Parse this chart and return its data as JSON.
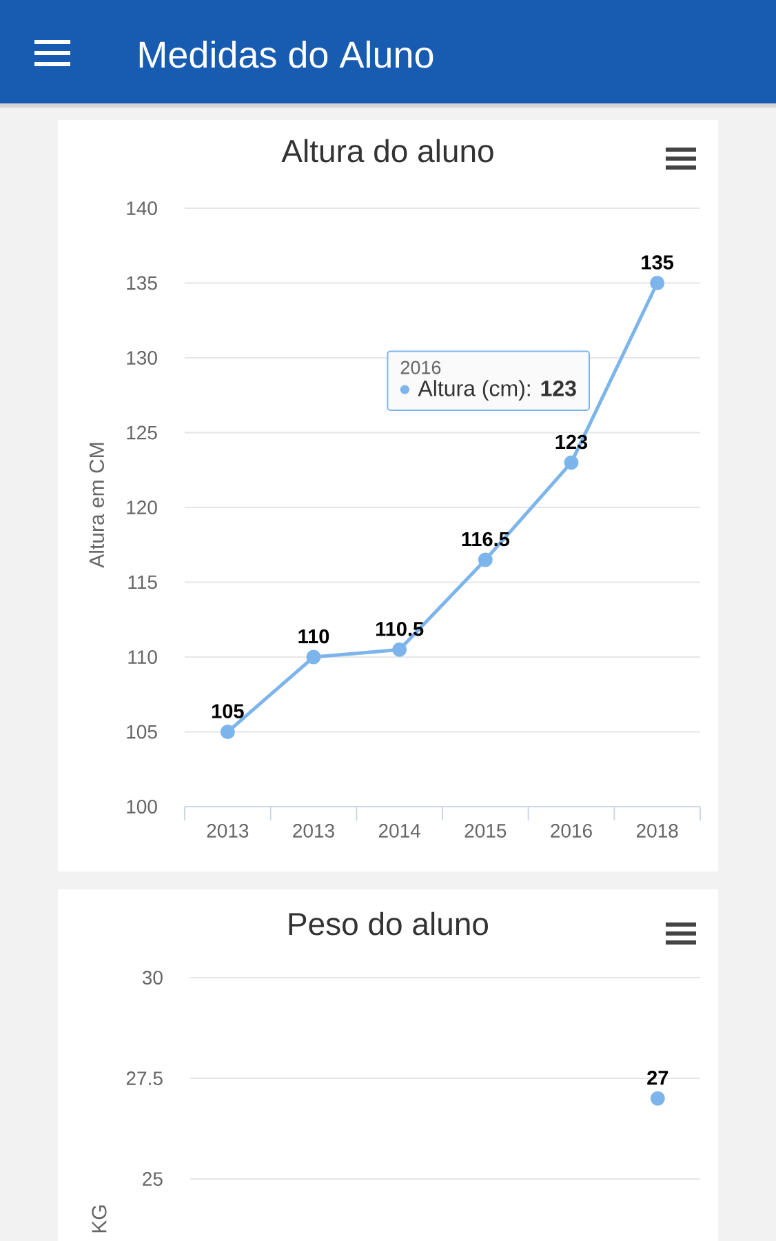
{
  "chart_data": [
    {
      "type": "line",
      "title": "Altura do aluno",
      "ylabel": "Altura em CM",
      "categories": [
        "2013",
        "2013",
        "2014",
        "2015",
        "2016",
        "2018"
      ],
      "series": [
        {
          "color": "#7cb5ec",
          "values": [
            105,
            110,
            110.5,
            116.5,
            123,
            135
          ]
        }
      ],
      "ylim": [
        100,
        140
      ],
      "yticks": [
        100,
        105,
        110,
        115,
        120,
        125,
        130,
        135,
        140
      ],
      "grid": "y",
      "marker": "circle",
      "data_labels": true,
      "annotations": [
        "Medidas do Aluno",
        "2016",
        "Altura (cm): **123**"
      ]
    },
    {
      "type": "line",
      "title": "Peso do aluno",
      "ylabel": "KG",
      "categories": [
        null,
        null,
        null,
        null,
        null,
        null
      ],
      "series": [
        {
          "color": "#7cb5ec",
          "values": [
            null,
            null,
            null,
            null,
            null,
            27
          ],
          "value_labels": [
            null,
            null,
            null,
            null,
            null,
            "27"
          ]
        }
      ],
      "ylim": [
        25,
        30
      ],
      "yticks": [
        25,
        27.5,
        30
      ],
      "grid": "y",
      "marker": "circle",
      "tick_labels": "y"
    }
  ]
}
